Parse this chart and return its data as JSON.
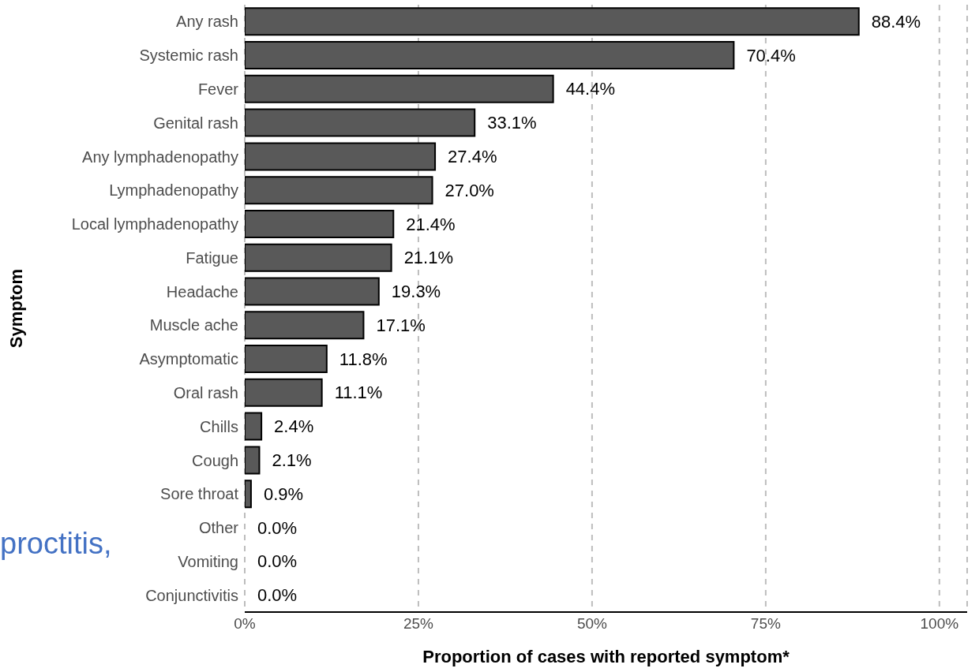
{
  "chart_data": {
    "type": "bar",
    "orientation": "horizontal",
    "categories": [
      "Any rash",
      "Systemic rash",
      "Fever",
      "Genital rash",
      "Any lymphadenopathy",
      "Lymphadenopathy",
      "Local lymphadenopathy",
      "Fatigue",
      "Headache",
      "Muscle ache",
      "Asymptomatic",
      "Oral rash",
      "Chills",
      "Cough",
      "Sore throat",
      "Other",
      "Vomiting",
      "Conjunctivitis"
    ],
    "values": [
      88.4,
      70.4,
      44.4,
      33.1,
      27.4,
      27.0,
      21.4,
      21.1,
      19.3,
      17.1,
      11.8,
      11.1,
      2.4,
      2.1,
      0.9,
      0.0,
      0.0,
      0.0
    ],
    "value_labels": [
      "88.4%",
      "70.4%",
      "44.4%",
      "33.1%",
      "27.4%",
      "27.0%",
      "21.4%",
      "21.1%",
      "19.3%",
      "17.1%",
      "11.8%",
      "11.1%",
      "2.4%",
      "2.1%",
      "0.9%",
      "0.0%",
      "0.0%",
      "0.0%"
    ],
    "color": "#595959",
    "xlim": [
      0,
      104
    ],
    "xticks": [
      {
        "value": 0,
        "label": "0%"
      },
      {
        "value": 25,
        "label": "25%"
      },
      {
        "value": 50,
        "label": "50%"
      },
      {
        "value": 75,
        "label": "75%"
      },
      {
        "value": 100,
        "label": "100%"
      }
    ],
    "xlabel": "Proportion of cases with reported symptom*",
    "ylabel": "Symptom",
    "grid": "x",
    "annotations": [
      "proctitis,"
    ]
  }
}
